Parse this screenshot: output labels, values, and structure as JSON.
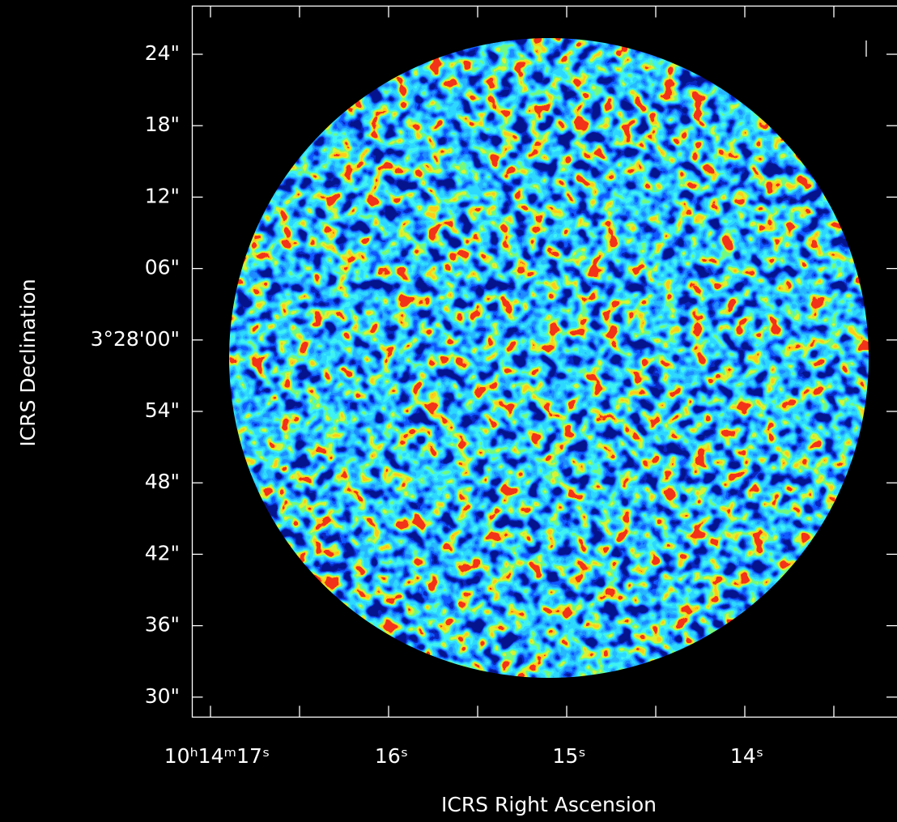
{
  "plot": {
    "x_axis": {
      "label": "ICRS Right Ascension",
      "ticks": [
        "10ʰ14ᵐ17ˢ",
        "16ˢ",
        "15ˢ",
        "14ˢ"
      ]
    },
    "y_axis": {
      "label": "ICRS Declination",
      "ticks": [
        "24\"",
        "18\"",
        "12\"",
        "06\"",
        "3°28'00\"",
        "54\"",
        "48\"",
        "42\"",
        "36\"",
        "30\""
      ]
    }
  }
}
